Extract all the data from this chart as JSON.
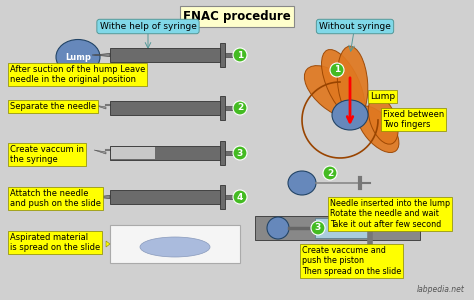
{
  "title": "FNAC procedure",
  "bg_color": "#d0d0d0",
  "left_title": "Withe help of syringe",
  "right_title": "Without syringe",
  "left_steps": [
    "After suction of the hump Leave\nneedle in the original position",
    "Separate the needle",
    "Create vaccum in\nthe syringe",
    "Attatch the needle\nand push on the slide"
  ],
  "right_steps": [
    "Fixed between\nTwo fingers",
    "Needle inserted into the lump\nRotate the needle and wait\nTake it out after few second",
    "Create vaccume and\npush the piston\nThen spread on the slide"
  ],
  "bottom_text": "Aspirated material\nis spread on the slide",
  "watermark": "labpedia.net",
  "syringe_dark": "#6b6b6b",
  "syringe_light": "#c8c8c8",
  "lump_blue": "#6688bb",
  "lump_orange": "#e07820",
  "label_bg": "#ffff00",
  "callout_bg": "#80d8e8",
  "step_circle_color": "#44bb22",
  "slide_bg": "#f5f5f5",
  "slide_blob": "#aabbdd",
  "title_bg": "#ffffcc"
}
